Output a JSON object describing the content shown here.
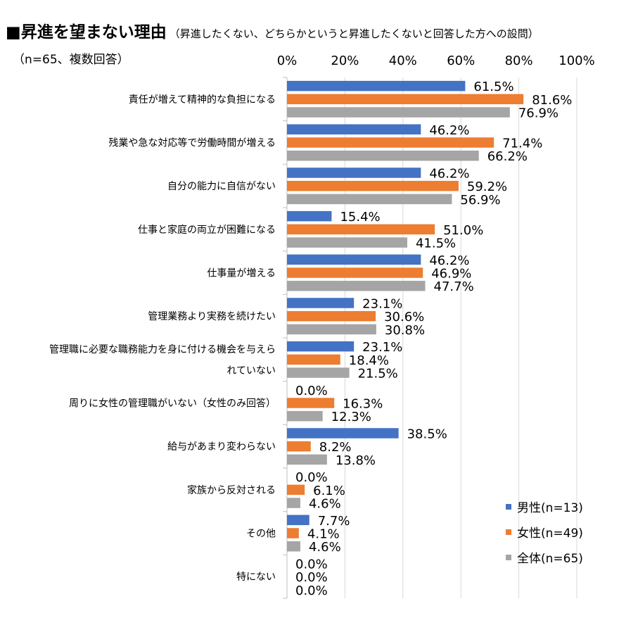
{
  "title": {
    "main": "■昇進を望まない理由",
    "sub": "（昇進したくない、どちらかというと昇進したくないと回答した方への設問）"
  },
  "note": "（n=65、複数回答）",
  "colors": {
    "male": "#4472C4",
    "female": "#ED7D31",
    "all": "#A5A5A5",
    "grid": "#D9D9D9",
    "axis": "#BFBFBF"
  },
  "chart_data": {
    "type": "bar",
    "orientation": "horizontal",
    "xlim": [
      0,
      100
    ],
    "x_ticks": [
      "0%",
      "20%",
      "40%",
      "60%",
      "80%",
      "100%"
    ],
    "x_tick_values": [
      0,
      20,
      40,
      60,
      80,
      100
    ],
    "grid": true,
    "legend_position": "bottom-right",
    "categories": [
      [
        "責任が増えて精神的な負担になる"
      ],
      [
        "残業や急な対応等で労働時間が増える"
      ],
      [
        "自分の能力に自信がない"
      ],
      [
        "仕事と家庭の両立が困難になる"
      ],
      [
        "仕事量が増える"
      ],
      [
        "管理業務より実務を続けたい"
      ],
      [
        "管理職に必要な職務能力を身に付ける機会を与えら",
        "れていない"
      ],
      [
        "周りに女性の管理職がいない（女性のみ回答）"
      ],
      [
        "給与があまり変わらない"
      ],
      [
        "家族から反対される"
      ],
      [
        "その他"
      ],
      [
        "特にない"
      ]
    ],
    "series": [
      {
        "name": "男性(n=13)",
        "color": "#4472C4",
        "values": [
          61.5,
          46.2,
          46.2,
          15.4,
          46.2,
          23.1,
          23.1,
          0.0,
          38.5,
          0.0,
          7.7,
          0.0
        ],
        "labels": [
          "61.5%",
          "46.2%",
          "46.2%",
          "15.4%",
          "46.2%",
          "23.1%",
          "23.1%",
          "0.0%",
          "38.5%",
          "0.0%",
          "7.7%",
          "0.0%"
        ]
      },
      {
        "name": "女性(n=49)",
        "color": "#ED7D31",
        "values": [
          81.6,
          71.4,
          59.2,
          51.0,
          46.9,
          30.6,
          18.4,
          16.3,
          8.2,
          6.1,
          4.1,
          0.0
        ],
        "labels": [
          "81.6%",
          "71.4%",
          "59.2%",
          "51.0%",
          "46.9%",
          "30.6%",
          "18.4%",
          "16.3%",
          "8.2%",
          "6.1%",
          "4.1%",
          "0.0%"
        ]
      },
      {
        "name": "全体(n=65)",
        "color": "#A5A5A5",
        "values": [
          76.9,
          66.2,
          56.9,
          41.5,
          47.7,
          30.8,
          21.5,
          12.3,
          13.8,
          4.6,
          4.6,
          0.0
        ],
        "labels": [
          "76.9%",
          "66.2%",
          "56.9%",
          "41.5%",
          "47.7%",
          "30.8%",
          "21.5%",
          "12.3%",
          "13.8%",
          "4.6%",
          "4.6%",
          "0.0%"
        ]
      }
    ]
  }
}
